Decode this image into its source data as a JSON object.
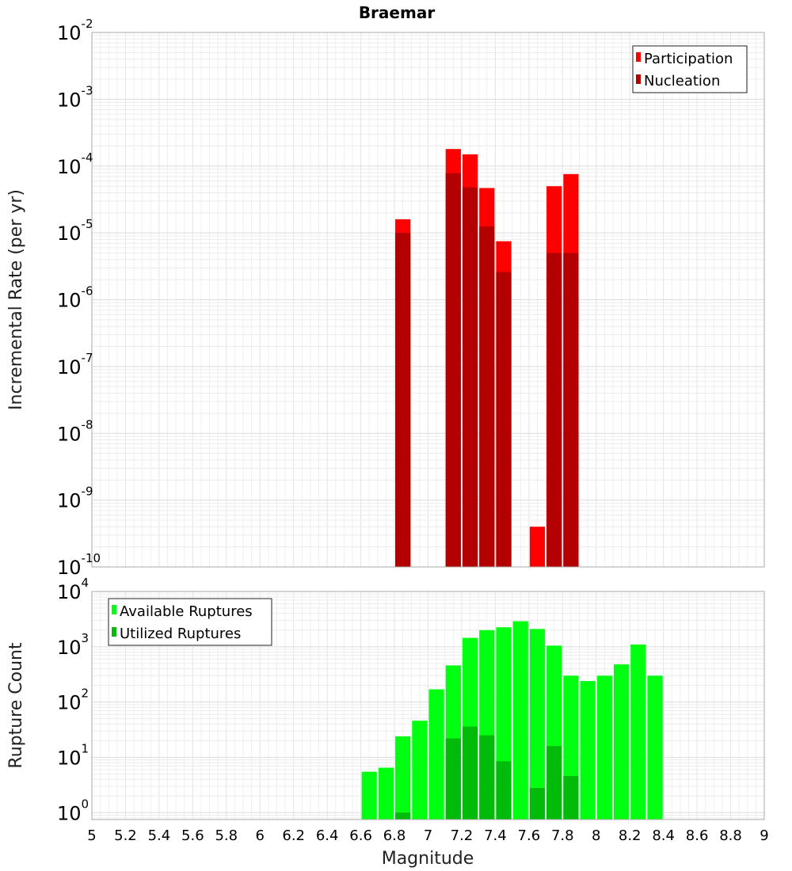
{
  "chart_data": [
    {
      "type": "bar",
      "title": "Braemar",
      "xlabel": "",
      "ylabel": "Incremental Rate (per yr)",
      "yscale": "log",
      "xlim": [
        5,
        9
      ],
      "ylim": [
        1e-10,
        0.01
      ],
      "y_decades": [
        -10,
        -9,
        -8,
        -7,
        -6,
        -5,
        -4,
        -3,
        -2
      ],
      "grid": true,
      "legend": {
        "position": "top-right",
        "entries": [
          "Participation",
          "Nucleation"
        ]
      },
      "bin_width": 0.1,
      "series": [
        {
          "name": "Participation",
          "color": "#ff0000",
          "x": [
            6.85,
            7.15,
            7.25,
            7.35,
            7.45,
            7.65,
            7.75,
            7.85
          ],
          "values": [
            1.6e-05,
            0.00018,
            0.00015,
            4.7e-05,
            7.5e-06,
            4e-10,
            5e-05,
            7.6e-05
          ]
        },
        {
          "name": "Nucleation",
          "color": "#b30000",
          "x": [
            6.85,
            7.15,
            7.25,
            7.35,
            7.45,
            7.75,
            7.85
          ],
          "values": [
            1e-05,
            7.8e-05,
            4.8e-05,
            1.25e-05,
            2.6e-06,
            5e-06,
            5e-06
          ]
        }
      ]
    },
    {
      "type": "bar",
      "title": "",
      "xlabel": "Magnitude",
      "ylabel": "Rupture Count",
      "yscale": "log",
      "xlim": [
        5,
        9
      ],
      "ylim": [
        0.75,
        10000
      ],
      "y_decades": [
        0,
        1,
        2,
        3,
        4
      ],
      "x_ticks": [
        "5",
        "5.2",
        "5.4",
        "5.6",
        "5.8",
        "6",
        "6.2",
        "6.4",
        "6.6",
        "6.8",
        "7",
        "7.2",
        "7.4",
        "7.6",
        "7.8",
        "8",
        "8.2",
        "8.4",
        "8.6",
        "8.8",
        "9"
      ],
      "grid": true,
      "legend": {
        "position": "top-left",
        "entries": [
          "Available Ruptures",
          "Utilized Ruptures"
        ]
      },
      "bin_width": 0.1,
      "series": [
        {
          "name": "Available Ruptures",
          "color": "#00ff11",
          "x": [
            6.65,
            6.75,
            6.85,
            6.95,
            7.05,
            7.15,
            7.25,
            7.35,
            7.45,
            7.55,
            7.65,
            7.75,
            7.85,
            7.95,
            8.05,
            8.15,
            8.25,
            8.35
          ],
          "values": [
            5.5,
            6.5,
            24,
            46,
            170,
            460,
            1450,
            2000,
            2250,
            2900,
            2100,
            1050,
            300,
            240,
            300,
            480,
            1100,
            300
          ]
        },
        {
          "name": "Utilized Ruptures",
          "color": "#00bb0a",
          "x": [
            6.85,
            7.15,
            7.25,
            7.35,
            7.45,
            7.65,
            7.75,
            7.85
          ],
          "values": [
            1,
            22,
            36,
            25,
            8.5,
            2.8,
            16,
            4.6
          ]
        }
      ]
    }
  ]
}
